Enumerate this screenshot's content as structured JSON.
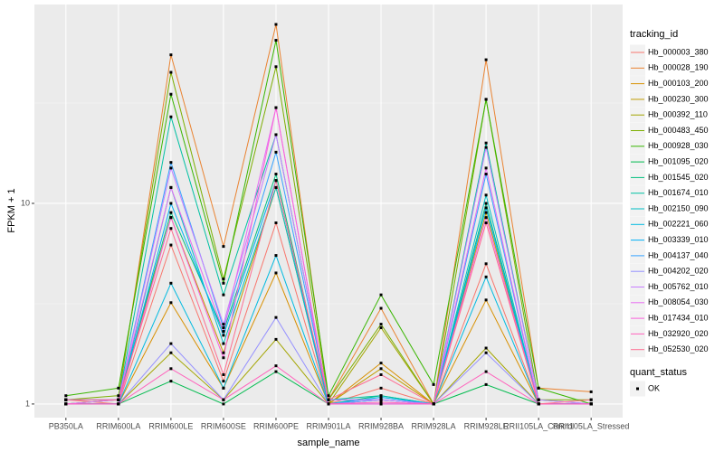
{
  "chart_data": {
    "type": "line",
    "x_label": "sample_name",
    "y_label": "FPKM + 1",
    "log_y": true,
    "grid": true,
    "ylim": [
      0.855,
      98
    ],
    "yticks": [
      1,
      10
    ],
    "categories": [
      "PB350LA",
      "RRIM600LA",
      "RRIM600LE",
      "RRIM600SE",
      "RRIM600PE",
      "RRIM901LA",
      "RRIM928BA",
      "RRIM928LA",
      "RRIM928LE",
      "RRII105LA_Control",
      "RRII105LA_Stressed"
    ],
    "legend_title": "tracking_id",
    "point_legend": {
      "title": "quant_status",
      "labels": [
        "OK"
      ]
    },
    "series": [
      {
        "name": "Hb_000003_380",
        "color": "#F8766D",
        "values": [
          1.05,
          1.0,
          6.2,
          1.3,
          8,
          1.0,
          1.2,
          1.0,
          5,
          1.0,
          1.0
        ]
      },
      {
        "name": "Hb_000028_190",
        "color": "#EA8331",
        "values": [
          1.05,
          1.05,
          55,
          6.1,
          78,
          1.05,
          3.0,
          1.0,
          52,
          1.2,
          1.15
        ]
      },
      {
        "name": "Hb_000103_200",
        "color": "#D89000",
        "values": [
          1.0,
          1.0,
          3.2,
          1.2,
          4.5,
          1.0,
          1.6,
          1.0,
          3.3,
          1.0,
          1.0
        ]
      },
      {
        "name": "Hb_000230_300",
        "color": "#C09B00",
        "values": [
          1.0,
          1.05,
          8.5,
          1.8,
          12,
          1.0,
          1.5,
          1.0,
          9,
          1.0,
          1.0
        ]
      },
      {
        "name": "Hb_000392_110",
        "color": "#A3A500",
        "values": [
          1.0,
          1.0,
          1.8,
          1.05,
          2.1,
          1.0,
          2.4,
          1.0,
          1.9,
          1.0,
          1.0
        ]
      },
      {
        "name": "Hb_000483_450",
        "color": "#7CAE00",
        "values": [
          1.05,
          1.1,
          45,
          4.2,
          48,
          1.05,
          2.5,
          1.0,
          33,
          1.05,
          1.05
        ]
      },
      {
        "name": "Hb_000928_030",
        "color": "#39B600",
        "values": [
          1.1,
          1.2,
          35,
          4.0,
          65,
          1.1,
          3.5,
          1.25,
          33,
          1.2,
          1.0
        ]
      },
      {
        "name": "Hb_001095_020",
        "color": "#00BB4E",
        "values": [
          1.0,
          1.0,
          1.3,
          1.0,
          1.45,
          1.0,
          1.0,
          1.0,
          1.25,
          1.0,
          1.0
        ]
      },
      {
        "name": "Hb_001545_020",
        "color": "#00BF7D",
        "values": [
          1.0,
          1.05,
          9,
          2.3,
          14,
          1.0,
          1.1,
          1.0,
          10,
          1.0,
          1.0
        ]
      },
      {
        "name": "Hb_001674_010",
        "color": "#00C1A3",
        "values": [
          1.05,
          1.05,
          27,
          3.5,
          22,
          1.05,
          1.1,
          1.0,
          20,
          1.05,
          1.0
        ]
      },
      {
        "name": "Hb_002150_090",
        "color": "#00BFC4",
        "values": [
          1.0,
          1.0,
          12,
          2.0,
          12,
          1.0,
          1.05,
          1.0,
          11,
          1.0,
          1.0
        ]
      },
      {
        "name": "Hb_002221_060",
        "color": "#00BAE0",
        "values": [
          1.0,
          1.0,
          4.0,
          1.2,
          5.5,
          1.0,
          1.05,
          1.0,
          4.3,
          1.0,
          1.0
        ]
      },
      {
        "name": "Hb_003339_010",
        "color": "#00B0F6",
        "values": [
          1.0,
          1.0,
          10,
          2.2,
          13,
          1.0,
          1.08,
          1.0,
          9.5,
          1.0,
          1.0
        ]
      },
      {
        "name": "Hb_004137_040",
        "color": "#35A2FF",
        "values": [
          1.05,
          1.05,
          16,
          2.4,
          18,
          1.05,
          1.05,
          1.0,
          14,
          1.0,
          1.0
        ]
      },
      {
        "name": "Hb_004202_020",
        "color": "#9590FF",
        "values": [
          1.0,
          1.0,
          2.0,
          1.05,
          2.7,
          1.0,
          1.05,
          1.0,
          1.8,
          1.0,
          1.0
        ]
      },
      {
        "name": "Hb_005762_010",
        "color": "#C77CFF",
        "values": [
          1.05,
          1.05,
          15,
          2.5,
          22,
          1.05,
          1.05,
          1.0,
          19,
          1.05,
          1.0
        ]
      },
      {
        "name": "Hb_008054_030",
        "color": "#E76BF3",
        "values": [
          1.0,
          1.05,
          12,
          2.3,
          30,
          1.0,
          1.0,
          1.0,
          15,
          1.0,
          1.0
        ]
      },
      {
        "name": "Hb_017434_010",
        "color": "#FA62DB",
        "values": [
          1.0,
          1.0,
          8.5,
          1.7,
          30,
          1.0,
          1.0,
          1.0,
          8.5,
          1.0,
          1.0
        ]
      },
      {
        "name": "Hb_032920_020",
        "color": "#FF62BC",
        "values": [
          1.0,
          1.0,
          1.5,
          1.05,
          1.55,
          1.0,
          1.02,
          1.0,
          1.45,
          1.0,
          1.0
        ]
      },
      {
        "name": "Hb_052530_020",
        "color": "#FF6C91",
        "values": [
          1.05,
          1.05,
          7.5,
          1.4,
          13,
          1.05,
          1.4,
          1.0,
          8,
          1.0,
          1.05
        ]
      }
    ]
  }
}
